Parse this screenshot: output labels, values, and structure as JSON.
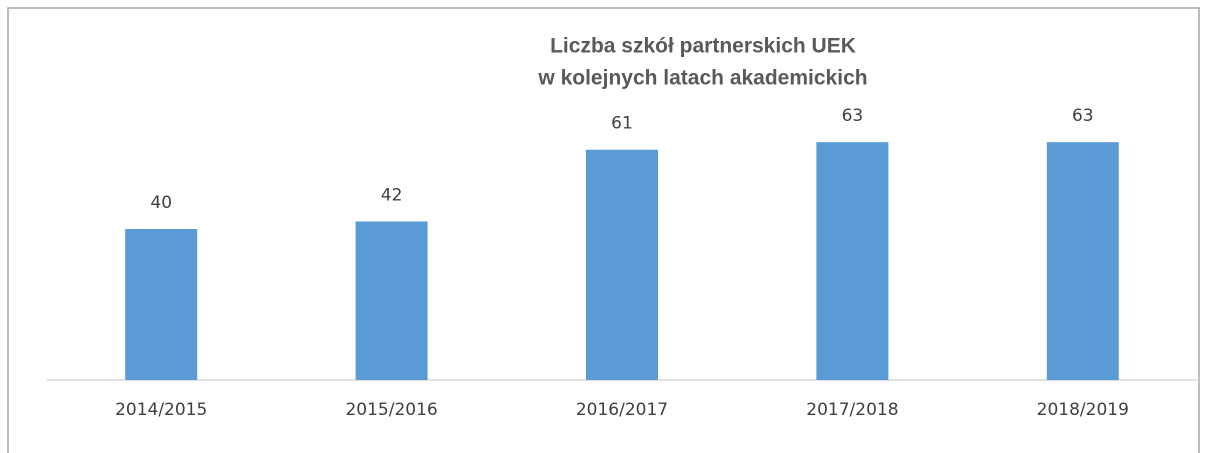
{
  "chart_data": {
    "type": "bar",
    "title": [
      "Liczba szkół partnerskich UEK",
      "w kolejnych latach akademickich"
    ],
    "categories": [
      "2014/2015",
      "2015/2016",
      "2016/2017",
      "2017/2018",
      "2018/2019"
    ],
    "values": [
      40,
      42,
      61,
      63,
      63
    ],
    "color": "#5b9bd5",
    "data_labels": true
  }
}
